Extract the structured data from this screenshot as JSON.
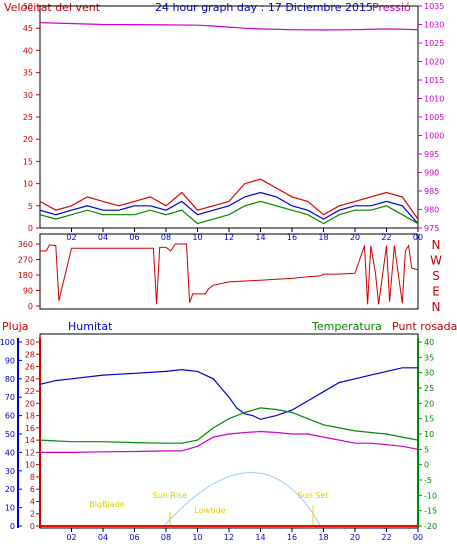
{
  "chart_data": [
    {
      "type": "line",
      "title": "24 hour graph day : 17 Diciembre 2015",
      "left_axis": {
        "label": "Velocitat del vent",
        "ticks": [
          0,
          5,
          10,
          15,
          20,
          25,
          30,
          35,
          40,
          45,
          50
        ],
        "range": [
          0,
          50
        ]
      },
      "right_axis": {
        "label": "Pressió",
        "ticks": [
          975,
          980,
          985,
          990,
          995,
          1000,
          1005,
          1010,
          1015,
          1020,
          1025,
          1030,
          1035
        ],
        "range": [
          975,
          1035
        ]
      },
      "x_ticks": [
        "02",
        "04",
        "06",
        "08",
        "10",
        "12",
        "14",
        "16",
        "18",
        "20",
        "22",
        "00"
      ],
      "series": [
        {
          "name": "Pressió",
          "axis": "right",
          "color": "#cc00cc",
          "x": [
            0,
            4,
            8,
            10,
            11,
            12,
            13,
            14,
            16,
            18,
            20,
            22,
            24
          ],
          "values": [
            1030.5,
            1030.0,
            1029.9,
            1029.8,
            1029.6,
            1029.3,
            1029.0,
            1028.8,
            1028.6,
            1028.5,
            1028.6,
            1028.8,
            1028.6
          ]
        },
        {
          "name": "",
          "axis": "left",
          "color": "#dd0000",
          "x": [
            0,
            1,
            2,
            3,
            4,
            5,
            6,
            7,
            8,
            9,
            10,
            11,
            12,
            13,
            14,
            15,
            16,
            17,
            18,
            19,
            20,
            21,
            22,
            23,
            24
          ],
          "values": [
            6,
            4,
            5,
            7,
            6,
            5,
            6,
            7,
            5,
            8,
            4,
            5,
            6,
            10,
            11,
            9,
            7,
            6,
            3,
            5,
            6,
            7,
            8,
            7,
            2
          ]
        },
        {
          "name": "",
          "axis": "left",
          "color": "#0000cc",
          "x": [
            0,
            1,
            2,
            3,
            4,
            5,
            6,
            7,
            8,
            9,
            10,
            11,
            12,
            13,
            14,
            15,
            16,
            17,
            18,
            19,
            20,
            21,
            22,
            23,
            24
          ],
          "values": [
            4,
            3,
            4,
            5,
            4,
            4,
            5,
            5,
            4,
            6,
            3,
            4,
            5,
            7,
            8,
            7,
            5,
            4,
            2,
            4,
            5,
            5,
            6,
            5,
            1
          ]
        },
        {
          "name": "",
          "axis": "left",
          "color": "#008800",
          "x": [
            0,
            1,
            2,
            3,
            4,
            5,
            6,
            7,
            8,
            9,
            10,
            11,
            12,
            13,
            14,
            15,
            16,
            17,
            18,
            19,
            20,
            21,
            22,
            23,
            24
          ],
          "values": [
            3,
            2,
            3,
            4,
            3,
            3,
            3,
            4,
            3,
            4,
            1,
            2,
            3,
            5,
            6,
            5,
            4,
            3,
            1,
            3,
            4,
            4,
            5,
            3,
            1
          ]
        }
      ]
    },
    {
      "type": "line",
      "left_axis": {
        "ticks": [
          0,
          90,
          180,
          270,
          360
        ],
        "range": [
          0,
          360
        ]
      },
      "right_labels": [
        "N",
        "W",
        "S",
        "E",
        "N"
      ],
      "series": [
        {
          "name": "",
          "color": "#cc0000",
          "x": [
            0,
            0.4,
            0.6,
            1.0,
            1.2,
            2,
            4,
            6,
            7.2,
            7.4,
            7.6,
            8,
            8.3,
            8.6,
            9.3,
            9.5,
            9.7,
            10.5,
            10.7,
            11,
            11.5,
            12,
            13,
            14,
            15,
            16,
            17,
            17.8,
            18,
            19,
            20,
            20.6,
            20.8,
            21,
            21.3,
            21.5,
            22,
            22.2,
            22.5,
            23,
            23.2,
            23.4,
            23.6,
            24
          ],
          "values": [
            320,
            320,
            355,
            350,
            30,
            335,
            335,
            335,
            335,
            10,
            340,
            340,
            320,
            360,
            360,
            20,
            70,
            70,
            100,
            120,
            130,
            140,
            145,
            150,
            155,
            160,
            170,
            175,
            185,
            185,
            190,
            350,
            10,
            350,
            190,
            10,
            350,
            25,
            350,
            15,
            320,
            350,
            220,
            210
          ]
        }
      ]
    },
    {
      "type": "line",
      "legend": [
        "Pluja",
        "Humitat",
        "Temperatura",
        "Punt rosada"
      ],
      "axes": {
        "humitat": {
          "label": "Humitat",
          "ticks": [
            0,
            10,
            20,
            30,
            40,
            50,
            60,
            70,
            80,
            90,
            100
          ],
          "range": [
            0,
            100
          ]
        },
        "pluja": {
          "label": "Pluja",
          "ticks": [
            0,
            2,
            4,
            6,
            8,
            10,
            12,
            14,
            16,
            18,
            20,
            22,
            24,
            26,
            28,
            30
          ],
          "range": [
            0,
            30
          ]
        },
        "temperatura": {
          "label": "Temperatura",
          "ticks": [
            -20,
            -15,
            -10,
            -5,
            0,
            5,
            10,
            15,
            20,
            25,
            30,
            35,
            40
          ],
          "range": [
            -20,
            40
          ]
        }
      },
      "x_ticks": [
        "02",
        "04",
        "06",
        "08",
        "10",
        "12",
        "14",
        "16",
        "18",
        "20",
        "22",
        "00"
      ],
      "annotations": [
        "BigBlade",
        "Sun Rise",
        "Lowtide",
        "Sun Set"
      ],
      "series": [
        {
          "name": "Humitat",
          "color": "#0000cc",
          "x": [
            0,
            1,
            2,
            4,
            6,
            8,
            9,
            10,
            11,
            12,
            12.5,
            13,
            13.5,
            14,
            15,
            16,
            17,
            18,
            19,
            20,
            21,
            22,
            23,
            24
          ],
          "values": [
            77,
            79,
            80,
            82,
            83,
            84,
            85,
            84,
            80,
            70,
            64,
            61,
            60,
            58,
            60,
            63,
            68,
            73,
            78,
            80,
            82,
            84,
            86,
            86
          ]
        },
        {
          "name": "Temperatura",
          "color": "#008800",
          "x": [
            0,
            2,
            4,
            6,
            8,
            9,
            10,
            10.5,
            11,
            12,
            13,
            14,
            15,
            16,
            17,
            18,
            19,
            20,
            21,
            22,
            23,
            24
          ],
          "values": [
            8,
            7.5,
            7.5,
            7.2,
            7,
            7,
            8,
            10,
            12,
            15,
            17,
            18.5,
            18,
            17,
            15,
            13,
            12,
            11,
            10.5,
            10,
            9,
            8
          ]
        },
        {
          "name": "Punt rosada",
          "color": "#cc00cc",
          "x": [
            0,
            2,
            4,
            6,
            8,
            9,
            10,
            11,
            12,
            13,
            14,
            15,
            16,
            17,
            18,
            19,
            20,
            21,
            22,
            23,
            24
          ],
          "values": [
            4,
            4,
            4.2,
            4.3,
            4.5,
            4.5,
            6,
            9,
            10,
            10.5,
            10.8,
            10.5,
            10,
            10,
            9,
            8,
            7,
            7,
            6.5,
            6,
            5
          ]
        },
        {
          "name": "Pluja",
          "color": "#ff0000",
          "x": [
            0,
            24
          ],
          "values": [
            0,
            0
          ]
        }
      ]
    }
  ]
}
